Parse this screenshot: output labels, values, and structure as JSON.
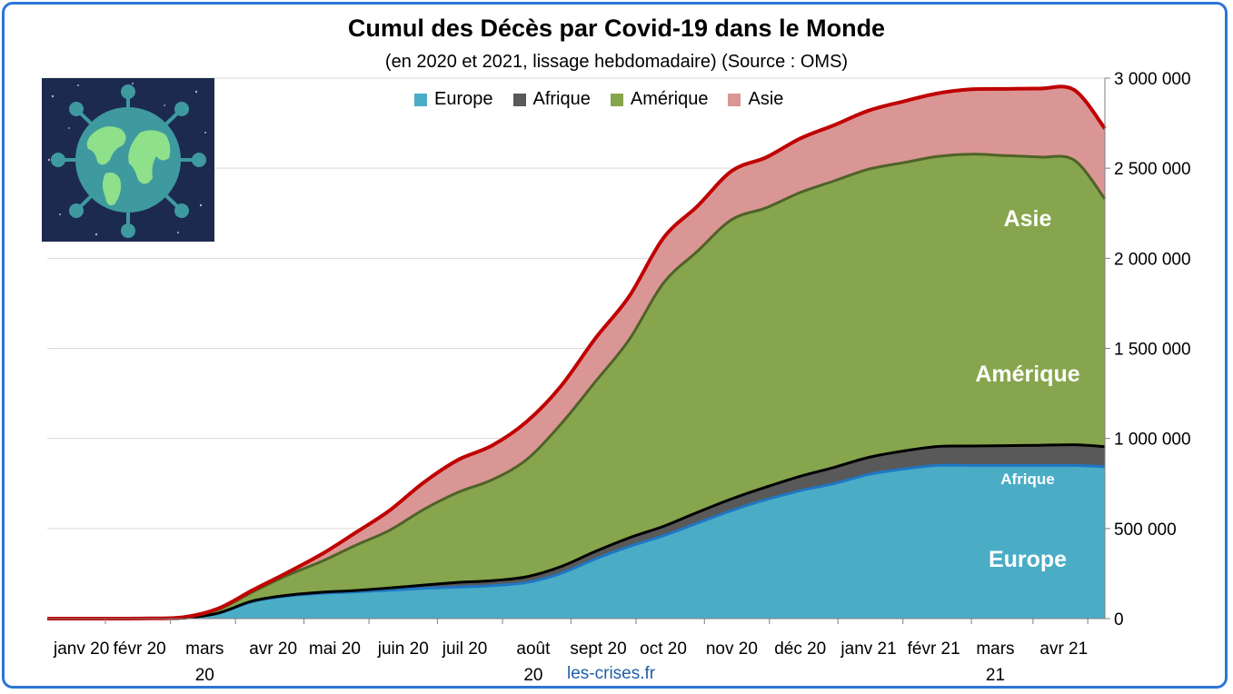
{
  "header": {
    "title": "Cumul des Décès par Covid-19 dans le Monde",
    "subtitle": "(en 2020 et 2021, lissage hebdomadaire) (Source : OMS)"
  },
  "source_label": "les-crises.fr",
  "colors": {
    "europe": "#4bacc6",
    "afrique": "#595959",
    "amerique": "#86a54d",
    "asie": "#da9694",
    "total_line": "#c00000",
    "europe_line": "#1f77c4",
    "afrique_line": "#000000",
    "amerique_line": "#4f6228",
    "frame": "#2e75d6"
  },
  "chart_data": {
    "type": "area",
    "stacked": true,
    "title": "Cumul des Décès par Covid-19 dans le Monde",
    "subtitle": "(en 2020 et 2021, lissage hebdomadaire) (Source : OMS)",
    "x_labels": [
      "janv 20",
      "févr 20",
      "mars 20",
      "avr 20",
      "mai 20",
      "juin 20",
      "juil 20",
      "août 20",
      "sept 20",
      "oct 20",
      "nov 20",
      "déc 20",
      "janv 21",
      "févr 21",
      "mars 21",
      "avr 21"
    ],
    "x": [
      0,
      0.5,
      1,
      1.5,
      2,
      2.5,
      3,
      3.5,
      4,
      4.5,
      5,
      5.5,
      6,
      6.5,
      7,
      7.5,
      8,
      8.5,
      9,
      9.5,
      10,
      10.5,
      11,
      11.5,
      12,
      12.5,
      13,
      13.5,
      14,
      14.5,
      15,
      15.45
    ],
    "ylim": [
      0,
      3000000
    ],
    "y_ticks": [
      0,
      500000,
      1000000,
      1500000,
      2000000,
      2500000,
      3000000
    ],
    "y_tick_labels": [
      "0",
      "500 000",
      "1 000 000",
      "1 500 000",
      "2 000 000",
      "2 500 000",
      "3 000 000"
    ],
    "series": [
      {
        "name": "Europe",
        "values": [
          0,
          0,
          0,
          50,
          3000,
          30000,
          95000,
          125000,
          140000,
          148000,
          158000,
          168000,
          175000,
          183000,
          200000,
          250000,
          330000,
          400000,
          460000,
          530000,
          600000,
          660000,
          710000,
          750000,
          800000,
          830000,
          850000,
          850000,
          850000,
          850000,
          850000,
          843000
        ]
      },
      {
        "name": "Afrique",
        "values": [
          0,
          0,
          0,
          0,
          200,
          1000,
          3000,
          4000,
          6000,
          8000,
          12000,
          18000,
          26000,
          28000,
          32000,
          38000,
          42000,
          48000,
          52000,
          60000,
          65000,
          70000,
          80000,
          90000,
          95000,
          100000,
          105000,
          108000,
          110000,
          112000,
          115000,
          112000
        ]
      },
      {
        "name": "Amérique",
        "values": [
          0,
          0,
          0,
          100,
          2000,
          20000,
          50000,
          110000,
          170000,
          250000,
          320000,
          420000,
          500000,
          560000,
          650000,
          790000,
          940000,
          1100000,
          1350000,
          1450000,
          1550000,
          1550000,
          1575000,
          1590000,
          1600000,
          1600000,
          1610000,
          1620000,
          1610000,
          1600000,
          1580000,
          1375000
        ]
      },
      {
        "name": "Asie",
        "values": [
          0,
          0,
          100,
          1000,
          3000,
          5000,
          10000,
          15000,
          40000,
          70000,
          110000,
          150000,
          180000,
          190000,
          210000,
          210000,
          240000,
          240000,
          250000,
          250000,
          270000,
          280000,
          300000,
          310000,
          325000,
          340000,
          350000,
          360000,
          370000,
          380000,
          390000,
          390000
        ]
      }
    ],
    "area_labels": [
      "Asie",
      "Amérique",
      "Afrique",
      "Europe"
    ]
  }
}
